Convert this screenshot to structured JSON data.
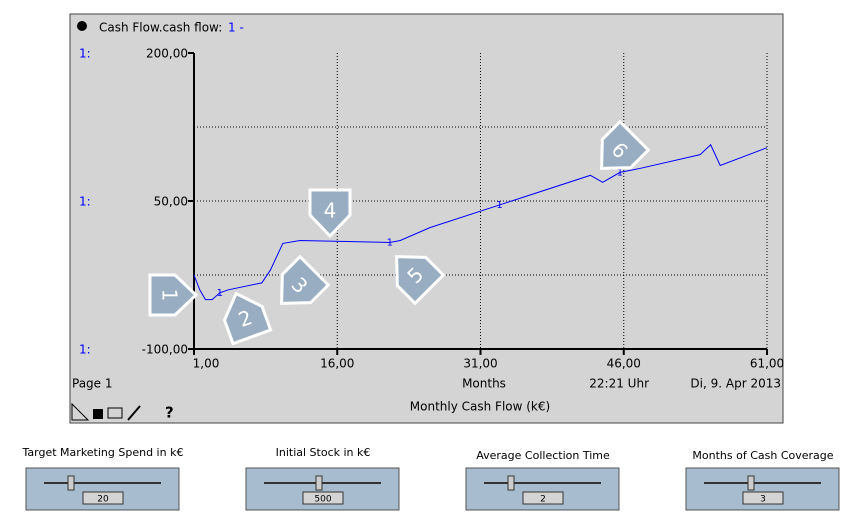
{
  "chart_data": {
    "type": "line",
    "title": "Cash Flow.cash flow:",
    "axis_id": "1:",
    "marker": "1",
    "x_label": "Months",
    "caption": "Monthly Cash Flow (k€)",
    "series": [
      {
        "name": "1 -",
        "color": "#0000ff",
        "x": [
          1,
          1.6,
          2.2,
          2.9,
          3.7,
          4.6,
          8.1,
          9,
          10.3,
          12.1,
          21.5,
          22.6,
          25.7,
          33,
          42.5,
          43.8,
          45.6,
          47.7,
          54,
          55.1,
          56.1,
          61
        ],
        "values": [
          -25,
          -40,
          -50,
          -50,
          -43,
          -40,
          -33,
          -20,
          7,
          10,
          8,
          10,
          23,
          46,
          76,
          69,
          79,
          83,
          97,
          107,
          86,
          104
        ]
      }
    ],
    "xlim": [
      1,
      61
    ],
    "ylim": [
      -100,
      200
    ],
    "xticks": [
      {
        "value": 1,
        "label": "1,00"
      },
      {
        "value": 16,
        "label": "16,00"
      },
      {
        "value": 31,
        "label": "31,00"
      },
      {
        "value": 46,
        "label": "46,00"
      },
      {
        "value": 61,
        "label": "61,00"
      }
    ],
    "yticks": [
      {
        "value": -100,
        "label": "-100,00"
      },
      {
        "value": 50,
        "label": "50,00"
      },
      {
        "value": 200,
        "label": "200,00"
      }
    ],
    "ygrid": [
      -25,
      50,
      125
    ],
    "grid": true
  },
  "footer": {
    "page": "Page 1",
    "time": "22:21 Uhr",
    "date": "Di, 9. Apr 2013",
    "help": "?"
  },
  "callouts": [
    "1",
    "2",
    "3",
    "4",
    "5",
    "6"
  ],
  "sliders": [
    {
      "label": "Target Marketing Spend in k€",
      "value": "20"
    },
    {
      "label": "Initial Stock in k€",
      "value": "500"
    },
    {
      "label": "Average Collection Time",
      "value": "2"
    },
    {
      "label": "Months of Cash Coverage",
      "value": "3"
    }
  ]
}
